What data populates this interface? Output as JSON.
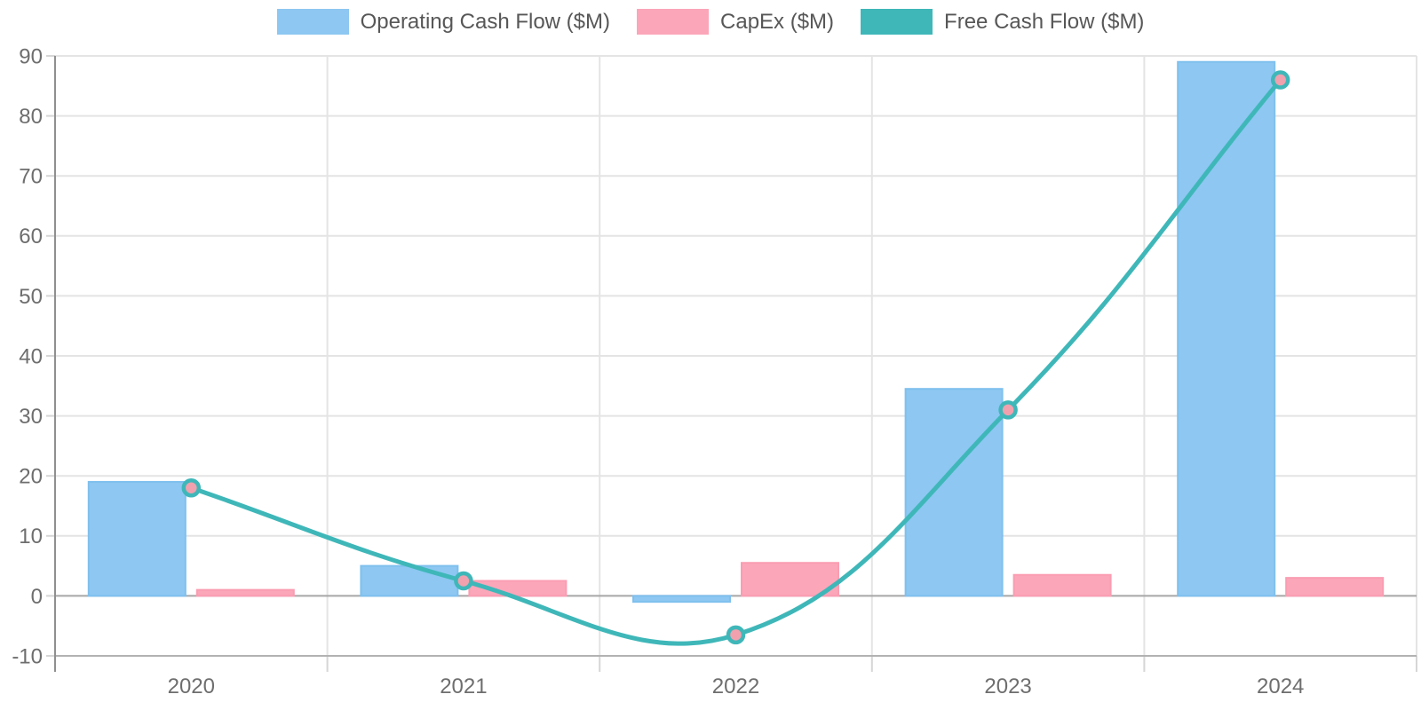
{
  "chart_data": {
    "type": "bar",
    "subtype": "combo-bar-line",
    "title": "",
    "xlabel": "",
    "ylabel": "",
    "categories": [
      "2020",
      "2021",
      "2022",
      "2023",
      "2024"
    ],
    "series": [
      {
        "name": "Operating Cash Flow ($M)",
        "kind": "bar",
        "color": "#8dc7f2",
        "border_color": "#7fc0ee",
        "values": [
          19,
          5,
          -1,
          34.5,
          89
        ]
      },
      {
        "name": "CapEx ($M)",
        "kind": "bar",
        "color": "#fba6b9",
        "border_color": "#fa9db2",
        "values": [
          1,
          2.5,
          5.5,
          3.5,
          3
        ]
      },
      {
        "name": "Free Cash Flow ($M)",
        "kind": "line",
        "color": "#3fb7b9",
        "marker_fill": "#f0a1ad",
        "line_width": 5,
        "tension": 0.4,
        "values": [
          18,
          2.5,
          -6.5,
          31,
          86
        ]
      }
    ],
    "ylim": [
      -10,
      90
    ],
    "yticks": [
      -10,
      0,
      10,
      20,
      30,
      40,
      50,
      60,
      70,
      80,
      90
    ],
    "grid": true,
    "legend_position": "top"
  },
  "colors": {
    "background": "#ffffff",
    "grid": "#e4e4e4",
    "zero_line": "#a6a6a6",
    "left_spine": "#8f8f8f",
    "bottom_spine": "#b2b2b2",
    "tick_stub": "#d6d6d6",
    "tick_label": "#6e6e6e",
    "legend_text": "#575757"
  }
}
